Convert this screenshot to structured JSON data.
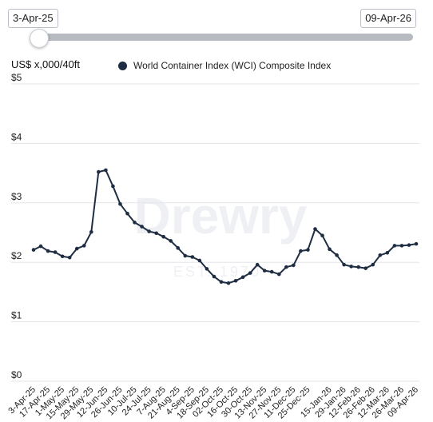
{
  "range": {
    "start_label": "3-Apr-25",
    "end_label": "09-Apr-26",
    "slider_position": 0
  },
  "watermark": {
    "main": "Drewry",
    "sub": "EST. 1970"
  },
  "colors": {
    "series": "#1e2d42",
    "grid": "#e3e6ea",
    "slider_track": "#b7bac0"
  },
  "chart_data": {
    "type": "line",
    "title": "",
    "ylabel": "US$ x,000/40ft",
    "ylim": [
      0,
      5
    ],
    "yticks": [
      "$0",
      "$1",
      "$2",
      "$3",
      "$4",
      "$5"
    ],
    "grid": true,
    "legend_position": "top",
    "x": [
      "3-Apr-25",
      "10-Apr-25",
      "17-Apr-25",
      "24-Apr-25",
      "1-May-25",
      "8-May-25",
      "15-May-25",
      "22-May-25",
      "29-May-25",
      "5-Jun-25",
      "12-Jun-25",
      "19-Jun-25",
      "26-Jun-25",
      "3-Jul-25",
      "10-Jul-25",
      "17-Jul-25",
      "24-Jul-25",
      "31-Jul-25",
      "7-Aug-25",
      "14-Aug-25",
      "21-Aug-25",
      "28-Aug-25",
      "4-Sep-25",
      "11-Sep-25",
      "18-Sep-25",
      "25-Sep-25",
      "02-Oct-25",
      "09-Oct-25",
      "16-Oct-25",
      "23-Oct-25",
      "30-Oct-25",
      "06-Nov-25",
      "13-Nov-25",
      "20-Nov-25",
      "27-Nov-25",
      "04-Dec-25",
      "11-Dec-25",
      "18-Dec-25",
      "25-Dec-25",
      "01-Jan-26",
      "08-Jan-26",
      "15-Jan-26",
      "22-Jan-26",
      "29-Jan-26",
      "05-Feb-26",
      "12-Feb-26",
      "19-Feb-26",
      "26-Feb-26",
      "05-Mar-26",
      "12-Mar-26",
      "19-Mar-26",
      "26-Mar-26",
      "02-Apr-26",
      "09-Apr-26"
    ],
    "xtick_labels": [
      "3-Apr-25",
      "17-Apr-25",
      "1-May-25",
      "15-May-25",
      "29-May-25",
      "12-Jun-25",
      "26-Jun-25",
      "10-Jul-25",
      "24-Jul-25",
      "7-Aug-25",
      "21-Aug-25",
      "4-Sep-25",
      "18-Sep-25",
      "02-Oct-25",
      "16-Oct-25",
      "30-Oct-25",
      "13-Nov-25",
      "27-Nov-25",
      "11-Dec-25",
      "25-Dec-25",
      "15-Jan-26",
      "29-Jan-26",
      "12-Feb-26",
      "26-Feb-26",
      "12-Mar-26",
      "26-Mar-26",
      "09-Apr-26"
    ],
    "xtick_index": [
      0,
      2,
      4,
      6,
      8,
      10,
      12,
      14,
      16,
      18,
      20,
      22,
      24,
      26,
      28,
      30,
      32,
      34,
      36,
      38,
      41,
      43,
      45,
      47,
      49,
      51,
      53
    ],
    "series": [
      {
        "name": "World Container Index (WCI) Composite Index",
        "values": [
          2.21,
          2.27,
          2.19,
          2.17,
          2.1,
          2.08,
          2.23,
          2.28,
          2.51,
          3.52,
          3.55,
          3.28,
          2.98,
          2.82,
          2.67,
          2.6,
          2.52,
          2.49,
          2.43,
          2.36,
          2.24,
          2.11,
          2.09,
          2.03,
          1.89,
          1.76,
          1.67,
          1.65,
          1.69,
          1.75,
          1.82,
          1.96,
          1.86,
          1.84,
          1.8,
          1.92,
          1.95,
          2.19,
          2.21,
          2.56,
          2.45,
          2.22,
          2.12,
          1.96,
          1.93,
          1.92,
          1.9,
          1.96,
          2.12,
          2.16,
          2.28,
          2.28,
          2.29,
          2.31
        ]
      }
    ]
  }
}
